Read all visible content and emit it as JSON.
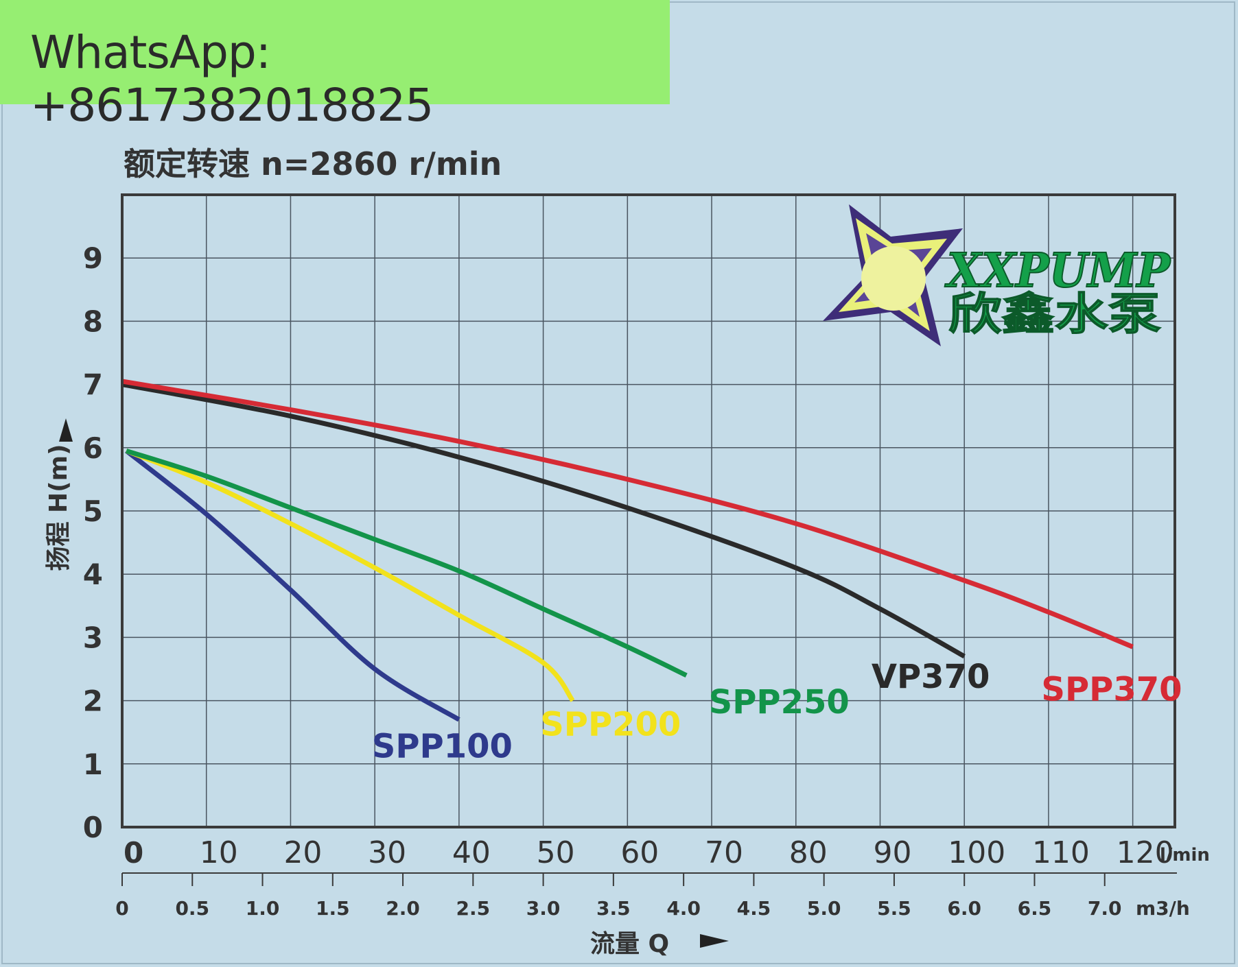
{
  "banner": {
    "text": "WhatsApp: +8617382018825"
  },
  "logo": {
    "text_en": "XXPUMP",
    "text_zh": "欣鑫水泵"
  },
  "chart_data": {
    "type": "line",
    "title": "额定转速 n=2860 r/min",
    "ylabel": "扬程 H(m)",
    "xlabel": "流量 Q",
    "x_unit_top": "l/min",
    "x_unit_bottom": "m3/h",
    "xlim": [
      0,
      125
    ],
    "ylim": [
      0,
      10
    ],
    "grid": true,
    "y_ticks": [
      "0",
      "1",
      "2",
      "3",
      "4",
      "5",
      "6",
      "7",
      "8",
      "9"
    ],
    "x_ticks_lmin": [
      "0",
      "10",
      "20",
      "30",
      "40",
      "50",
      "60",
      "70",
      "80",
      "90",
      "100",
      "110",
      "120"
    ],
    "x_ticks_m3h": [
      "0",
      "0.5",
      "1.0",
      "1.5",
      "2.0",
      "2.5",
      "3.0",
      "3.5",
      "4.0",
      "4.5",
      "5.0",
      "5.5",
      "6.0",
      "6.5",
      "7.0"
    ],
    "series": [
      {
        "name": "SPP100",
        "color": "#2e3a8c",
        "points": [
          [
            0.5,
            5.95
          ],
          [
            10,
            4.95
          ],
          [
            20,
            3.75
          ],
          [
            30,
            2.5
          ],
          [
            40,
            1.7
          ]
        ]
      },
      {
        "name": "SPP200",
        "color": "#f2e21c",
        "points": [
          [
            0.5,
            5.95
          ],
          [
            10,
            5.45
          ],
          [
            20,
            4.8
          ],
          [
            30,
            4.1
          ],
          [
            40,
            3.35
          ],
          [
            50,
            2.6
          ],
          [
            53.5,
            2.0
          ]
        ]
      },
      {
        "name": "SPP250",
        "color": "#13944a",
        "points": [
          [
            0.5,
            5.95
          ],
          [
            10,
            5.55
          ],
          [
            20,
            5.05
          ],
          [
            30,
            4.55
          ],
          [
            40,
            4.05
          ],
          [
            50,
            3.45
          ],
          [
            60,
            2.85
          ],
          [
            67,
            2.4
          ]
        ]
      },
      {
        "name": "VP370",
        "color": "#2a2a2a",
        "points": [
          [
            0,
            7.0
          ],
          [
            20,
            6.5
          ],
          [
            40,
            5.85
          ],
          [
            60,
            5.05
          ],
          [
            80,
            4.1
          ],
          [
            90,
            3.45
          ],
          [
            100,
            2.7
          ]
        ]
      },
      {
        "name": "SPP370",
        "color": "#d62b35",
        "points": [
          [
            0,
            7.05
          ],
          [
            20,
            6.6
          ],
          [
            40,
            6.1
          ],
          [
            60,
            5.5
          ],
          [
            80,
            4.8
          ],
          [
            100,
            3.9
          ],
          [
            110,
            3.4
          ],
          [
            120,
            2.85
          ]
        ]
      }
    ]
  }
}
